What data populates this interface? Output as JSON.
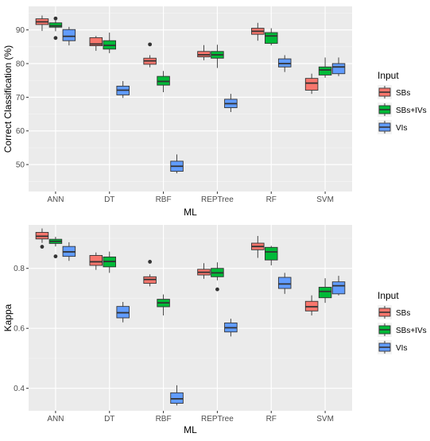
{
  "colors": {
    "panel_bg": "#EBEBEB",
    "grid_major": "#FFFFFF",
    "text_dark": "#000000",
    "tick_text": "#4D4D4D",
    "series": [
      "#F8766D",
      "#00BA38",
      "#619CFF"
    ]
  },
  "chart_data": [
    {
      "type": "boxplot",
      "ylabel": "Correct Classification (%)",
      "xlabel": "ML",
      "categories": [
        "ANN",
        "DT",
        "RBF",
        "REPTree",
        "RF",
        "SVM"
      ],
      "ylim": [
        42,
        97
      ],
      "yticks": [
        50,
        60,
        70,
        80,
        90
      ],
      "grid": true,
      "legend": {
        "title": "Input",
        "position": "right",
        "labels": [
          "SBs",
          "SBs+IVs",
          "VIs"
        ]
      },
      "series": [
        {
          "name": "SBs",
          "boxes": [
            {
              "min": 89.7,
              "q1": 91.6,
              "median": 92.4,
              "q3": 93.3,
              "max": 94.3,
              "outliers": []
            },
            {
              "min": 83.8,
              "q1": 85.3,
              "median": 85.8,
              "q3": 87.7,
              "max": 88.2,
              "outliers": []
            },
            {
              "min": 78.9,
              "q1": 79.8,
              "median": 80.8,
              "q3": 81.6,
              "max": 82.5,
              "outliers": [
                85.7
              ]
            },
            {
              "min": 81.0,
              "q1": 82.0,
              "median": 82.6,
              "q3": 83.6,
              "max": 85.5,
              "outliers": []
            },
            {
              "min": 86.8,
              "q1": 88.7,
              "median": 89.6,
              "q3": 90.5,
              "max": 92.1,
              "outliers": []
            },
            {
              "min": 71.0,
              "q1": 72.1,
              "median": 74.2,
              "q3": 75.6,
              "max": 77.0,
              "outliers": []
            }
          ]
        },
        {
          "name": "SBs+IVs",
          "boxes": [
            {
              "min": 89.6,
              "q1": 90.8,
              "median": 91.2,
              "q3": 92.1,
              "max": 92.8,
              "outliers": [
                93.4,
                87.6
              ]
            },
            {
              "min": 83.1,
              "q1": 84.3,
              "median": 85.4,
              "q3": 86.8,
              "max": 89.2,
              "outliers": []
            },
            {
              "min": 71.5,
              "q1": 73.6,
              "median": 74.7,
              "q3": 76.2,
              "max": 77.8,
              "outliers": []
            },
            {
              "min": 78.7,
              "q1": 81.6,
              "median": 82.6,
              "q3": 83.6,
              "max": 85.6,
              "outliers": []
            },
            {
              "min": 85.4,
              "q1": 86.0,
              "median": 88.2,
              "q3": 89.2,
              "max": 90.5,
              "outliers": []
            },
            {
              "min": 75.8,
              "q1": 76.6,
              "median": 78.1,
              "q3": 79.0,
              "max": 81.8,
              "outliers": []
            }
          ]
        },
        {
          "name": "VIs",
          "boxes": [
            {
              "min": 85.4,
              "q1": 86.8,
              "median": 88.1,
              "q3": 90.1,
              "max": 90.9,
              "outliers": []
            },
            {
              "min": 69.8,
              "q1": 70.7,
              "median": 72.1,
              "q3": 73.3,
              "max": 74.8,
              "outliers": []
            },
            {
              "min": 47.4,
              "q1": 48.0,
              "median": 49.5,
              "q3": 51.0,
              "max": 53.0,
              "outliers": []
            },
            {
              "min": 65.6,
              "q1": 66.9,
              "median": 68.1,
              "q3": 69.4,
              "max": 71.0,
              "outliers": []
            },
            {
              "min": 77.5,
              "q1": 79.0,
              "median": 80.0,
              "q3": 81.4,
              "max": 82.5,
              "outliers": []
            },
            {
              "min": 76.3,
              "q1": 77.0,
              "median": 79.0,
              "q3": 80.0,
              "max": 81.8,
              "outliers": []
            }
          ]
        }
      ]
    },
    {
      "type": "boxplot",
      "ylabel": "Kappa",
      "xlabel": "ML",
      "categories": [
        "ANN",
        "DT",
        "RBF",
        "REPTree",
        "RF",
        "SVM"
      ],
      "ylim": [
        0.325,
        0.945
      ],
      "yticks": [
        0.4,
        0.6,
        0.8
      ],
      "ytick_labels": [
        "0.4",
        "0.6",
        "0.8"
      ],
      "grid": true,
      "legend": {
        "title": "Input",
        "position": "right",
        "labels": [
          "SBs",
          "SBs+IVs",
          "VIs"
        ]
      },
      "series": [
        {
          "name": "SBs",
          "boxes": [
            {
              "min": 0.885,
              "q1": 0.898,
              "median": 0.907,
              "q3": 0.92,
              "max": 0.933,
              "outliers": [
                0.872
              ]
            },
            {
              "min": 0.795,
              "q1": 0.81,
              "median": 0.822,
              "q3": 0.843,
              "max": 0.853,
              "outliers": []
            },
            {
              "min": 0.74,
              "q1": 0.75,
              "median": 0.763,
              "q3": 0.772,
              "max": 0.78,
              "outliers": [
                0.822
              ]
            },
            {
              "min": 0.765,
              "q1": 0.778,
              "median": 0.787,
              "q3": 0.797,
              "max": 0.817,
              "outliers": []
            },
            {
              "min": 0.835,
              "q1": 0.862,
              "median": 0.873,
              "q3": 0.884,
              "max": 0.908,
              "outliers": []
            },
            {
              "min": 0.643,
              "q1": 0.658,
              "median": 0.672,
              "q3": 0.69,
              "max": 0.71,
              "outliers": []
            }
          ]
        },
        {
          "name": "SBs+IVs",
          "boxes": [
            {
              "min": 0.873,
              "q1": 0.883,
              "median": 0.89,
              "q3": 0.897,
              "max": 0.905,
              "outliers": [
                0.84
              ]
            },
            {
              "min": 0.785,
              "q1": 0.805,
              "median": 0.823,
              "q3": 0.838,
              "max": 0.856,
              "outliers": []
            },
            {
              "min": 0.643,
              "q1": 0.672,
              "median": 0.685,
              "q3": 0.697,
              "max": 0.713,
              "outliers": []
            },
            {
              "min": 0.76,
              "q1": 0.772,
              "median": 0.785,
              "q3": 0.8,
              "max": 0.82,
              "outliers": [
                0.73
              ]
            },
            {
              "min": 0.81,
              "q1": 0.828,
              "median": 0.855,
              "q3": 0.87,
              "max": 0.875,
              "outliers": []
            },
            {
              "min": 0.685,
              "q1": 0.702,
              "median": 0.723,
              "q3": 0.737,
              "max": 0.767,
              "outliers": []
            }
          ]
        },
        {
          "name": "VIs",
          "boxes": [
            {
              "min": 0.825,
              "q1": 0.84,
              "median": 0.855,
              "q3": 0.873,
              "max": 0.887,
              "outliers": []
            },
            {
              "min": 0.62,
              "q1": 0.635,
              "median": 0.652,
              "q3": 0.673,
              "max": 0.688,
              "outliers": []
            },
            {
              "min": 0.343,
              "q1": 0.35,
              "median": 0.365,
              "q3": 0.385,
              "max": 0.41,
              "outliers": []
            },
            {
              "min": 0.573,
              "q1": 0.588,
              "median": 0.602,
              "q3": 0.618,
              "max": 0.632,
              "outliers": []
            },
            {
              "min": 0.715,
              "q1": 0.733,
              "median": 0.748,
              "q3": 0.77,
              "max": 0.785,
              "outliers": []
            },
            {
              "min": 0.71,
              "q1": 0.715,
              "median": 0.742,
              "q3": 0.755,
              "max": 0.775,
              "outliers": []
            }
          ]
        }
      ]
    }
  ]
}
